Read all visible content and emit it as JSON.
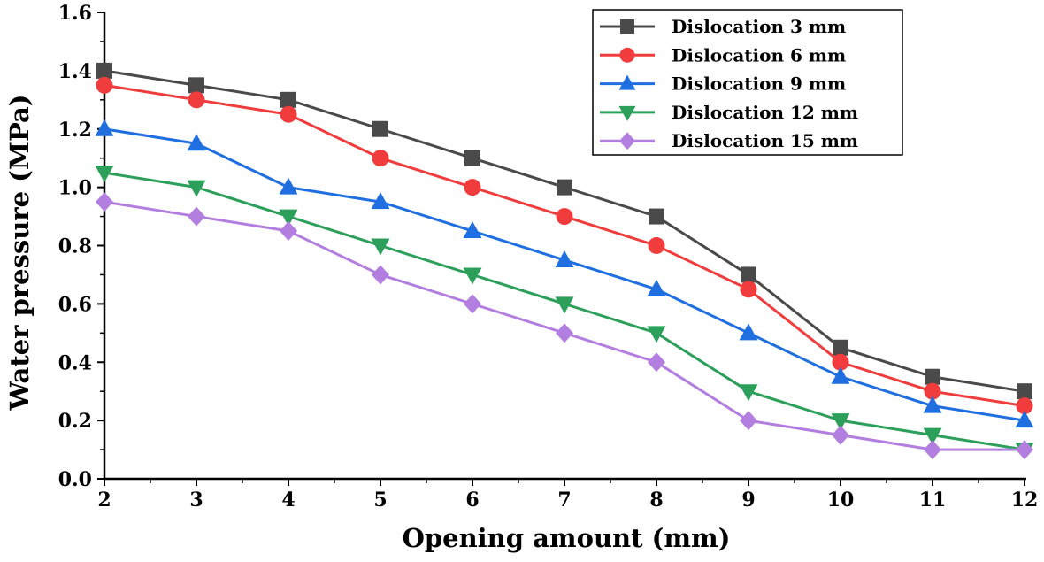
{
  "chart_data": {
    "type": "line",
    "title": "",
    "xlabel": "Opening amount (mm)",
    "ylabel": "Water pressure (MPa)",
    "x": [
      2,
      3,
      4,
      5,
      6,
      7,
      8,
      9,
      10,
      11,
      12
    ],
    "xlim": [
      2,
      12
    ],
    "ylim": [
      0,
      1.6
    ],
    "xticks": [
      "2",
      "3",
      "4",
      "5",
      "6",
      "7",
      "8",
      "9",
      "10",
      "11",
      "12"
    ],
    "yticks": [
      "0.0",
      "0.2",
      "0.4",
      "0.6",
      "0.8",
      "1.0",
      "1.2",
      "1.4",
      "1.6"
    ],
    "grid": false,
    "legend_position": "top-right",
    "series": [
      {
        "name": "Dislocation 3 mm",
        "color": "#4a4a4a",
        "marker": "square",
        "values": [
          1.4,
          1.35,
          1.3,
          1.2,
          1.1,
          1.0,
          0.9,
          0.7,
          0.45,
          0.35,
          0.3
        ]
      },
      {
        "name": "Dislocation 6 mm",
        "color": "#f03c3c",
        "marker": "circle",
        "values": [
          1.35,
          1.3,
          1.25,
          1.1,
          1.0,
          0.9,
          0.8,
          0.65,
          0.4,
          0.3,
          0.25
        ]
      },
      {
        "name": "Dislocation 9 mm",
        "color": "#1f6fe0",
        "marker": "triangle-up",
        "values": [
          1.2,
          1.15,
          1.0,
          0.95,
          0.85,
          0.75,
          0.65,
          0.5,
          0.35,
          0.25,
          0.2
        ]
      },
      {
        "name": "Dislocation 12 mm",
        "color": "#2ca05a",
        "marker": "triangle-down",
        "values": [
          1.05,
          1.0,
          0.9,
          0.8,
          0.7,
          0.6,
          0.5,
          0.3,
          0.2,
          0.15,
          0.1
        ]
      },
      {
        "name": "Dislocation 15 mm",
        "color": "#b27fe0",
        "marker": "diamond",
        "values": [
          0.95,
          0.9,
          0.85,
          0.7,
          0.6,
          0.5,
          0.4,
          0.2,
          0.15,
          0.1,
          0.1
        ]
      }
    ]
  }
}
